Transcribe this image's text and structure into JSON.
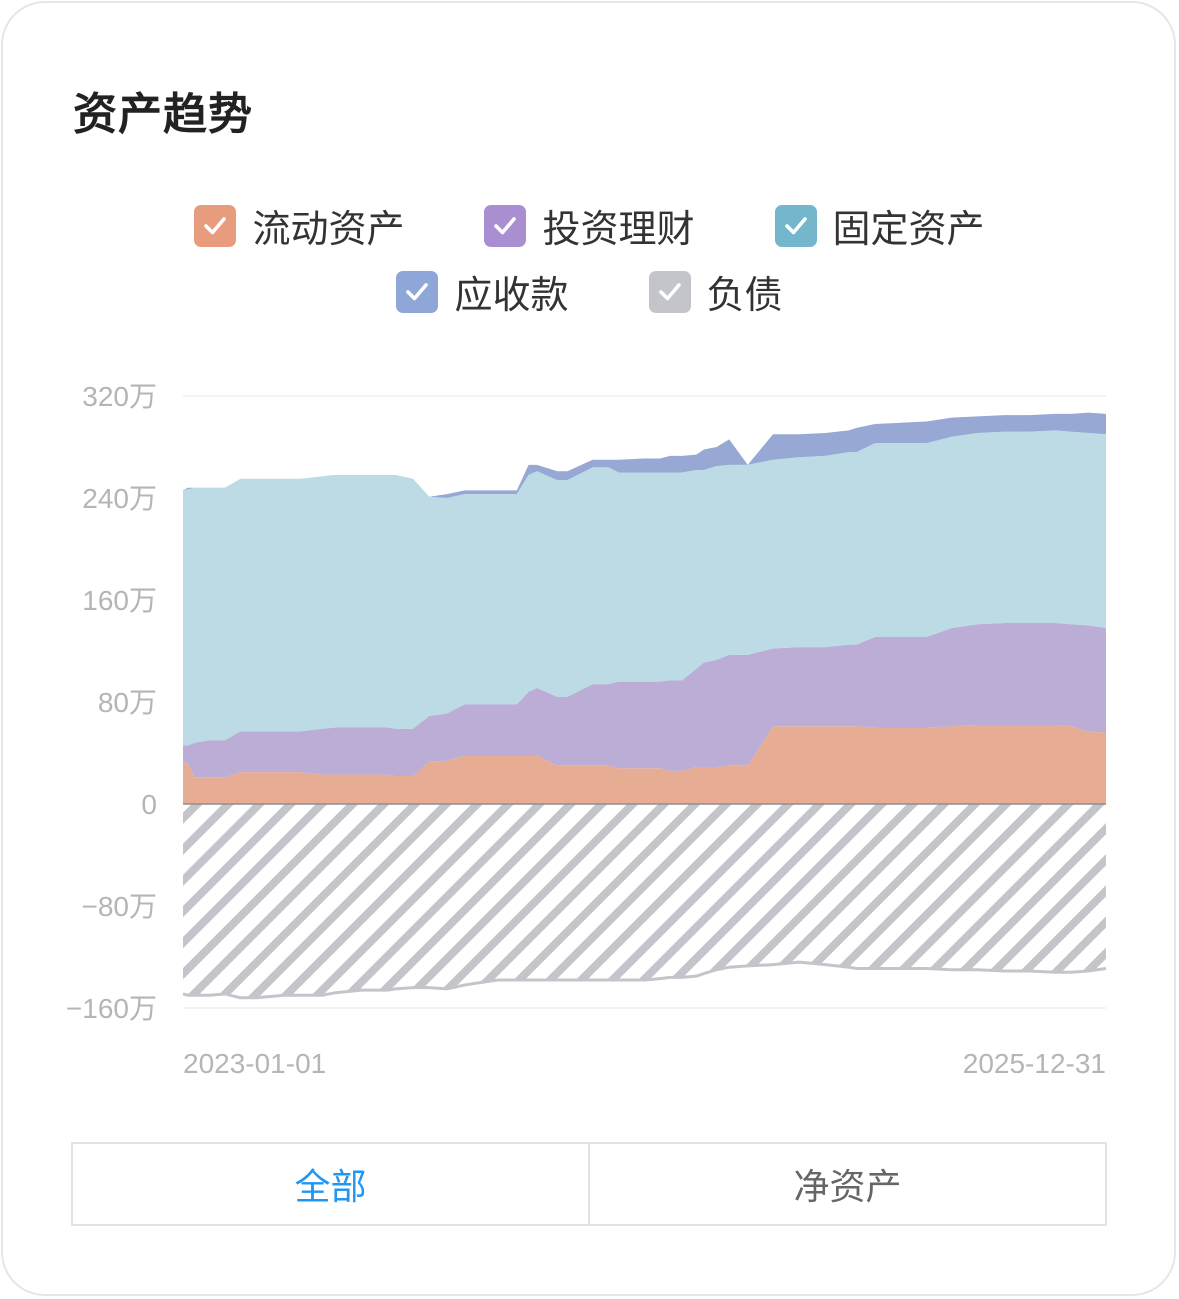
{
  "card": {
    "title": "资产趋势"
  },
  "legend": [
    {
      "label": "流动资产",
      "color": "#e79c7e",
      "icon": "check-icon"
    },
    {
      "label": "投资理财",
      "color": "#a98fd2",
      "icon": "check-icon"
    },
    {
      "label": "固定资产",
      "color": "#74b7cc",
      "icon": "check-icon"
    },
    {
      "label": "应收款",
      "color": "#8fa7d8",
      "icon": "check-icon"
    },
    {
      "label": "负债",
      "color": "#c4c4cb",
      "icon": "check-icon"
    }
  ],
  "tabs": [
    {
      "label": "全部",
      "active": true
    },
    {
      "label": "净资产",
      "active": false
    }
  ],
  "chart_data": {
    "type": "area",
    "stacked": true,
    "ylim": [
      -1600000,
      3200000
    ],
    "y_ticks": [
      {
        "value": 3200000,
        "label": "320万"
      },
      {
        "value": 2400000,
        "label": "240万"
      },
      {
        "value": 1600000,
        "label": "160万"
      },
      {
        "value": 800000,
        "label": "80万"
      },
      {
        "value": 0,
        "label": "0"
      },
      {
        "value": -800000,
        "label": "−80万"
      },
      {
        "value": -1600000,
        "label": "−160万"
      }
    ],
    "x_tick_labels": [
      "2023-01-01",
      "2025-12-31"
    ],
    "x": [
      "2023-01-01",
      "2023-01-07",
      "2023-01-15",
      "2023-02-01",
      "2023-02-20",
      "2023-03-10",
      "2023-03-29",
      "2023-05-01",
      "2023-05-20",
      "2023-06-15",
      "2023-07-01",
      "2023-08-01",
      "2023-08-20",
      "2023-09-01",
      "2023-09-10",
      "2023-10-01",
      "2023-10-20",
      "2023-11-10",
      "2023-12-01",
      "2023-12-20",
      "2024-01-10",
      "2024-02-01",
      "2024-02-15",
      "2024-02-25",
      "2024-03-20",
      "2024-04-01",
      "2024-05-01",
      "2024-05-20",
      "2024-06-01",
      "2024-07-01",
      "2024-07-20",
      "2024-08-01",
      "2024-08-15",
      "2024-09-01",
      "2024-09-10",
      "2024-09-25",
      "2024-10-10",
      "2024-11-01",
      "2024-12-01",
      "2025-01-01",
      "2025-02-01",
      "2025-03-01",
      "2025-03-10",
      "2025-04-01",
      "2025-05-01",
      "2025-06-01",
      "2025-07-01",
      "2025-08-01",
      "2025-09-01",
      "2025-10-01",
      "2025-11-01",
      "2025-11-20",
      "2025-12-10",
      "2025-12-31"
    ],
    "series": [
      {
        "name": "流动资产",
        "color": "#e6ad94",
        "values": [
          330000,
          320000,
          210000,
          210000,
          210000,
          250000,
          250000,
          250000,
          250000,
          230000,
          230000,
          230000,
          230000,
          230000,
          220000,
          220000,
          330000,
          340000,
          380000,
          380000,
          380000,
          380000,
          380000,
          380000,
          300000,
          300000,
          300000,
          300000,
          280000,
          280000,
          280000,
          260000,
          260000,
          290000,
          290000,
          290000,
          300000,
          300000,
          610000,
          610000,
          610000,
          610000,
          610000,
          600000,
          600000,
          600000,
          610000,
          620000,
          620000,
          620000,
          620000,
          610000,
          570000,
          560000
        ]
      },
      {
        "name": "投资理财",
        "color": "#bbadd6",
        "values": [
          130000,
          140000,
          270000,
          290000,
          290000,
          320000,
          320000,
          320000,
          320000,
          360000,
          370000,
          370000,
          370000,
          370000,
          370000,
          370000,
          360000,
          370000,
          400000,
          400000,
          400000,
          400000,
          500000,
          530000,
          540000,
          540000,
          640000,
          640000,
          680000,
          680000,
          680000,
          710000,
          710000,
          770000,
          820000,
          840000,
          870000,
          870000,
          610000,
          620000,
          620000,
          640000,
          640000,
          710000,
          710000,
          710000,
          770000,
          790000,
          800000,
          800000,
          800000,
          800000,
          830000,
          820000
        ]
      },
      {
        "name": "固定资产",
        "color": "#bddbe4",
        "values": [
          2000000,
          2010000,
          2000000,
          1980000,
          1980000,
          1980000,
          1980000,
          1980000,
          1980000,
          1980000,
          1980000,
          1980000,
          1980000,
          1980000,
          1990000,
          1960000,
          1720000,
          1690000,
          1650000,
          1650000,
          1650000,
          1650000,
          1700000,
          1700000,
          1700000,
          1700000,
          1700000,
          1700000,
          1640000,
          1640000,
          1640000,
          1630000,
          1630000,
          1560000,
          1510000,
          1520000,
          1490000,
          1490000,
          1480000,
          1490000,
          1500000,
          1510000,
          1510000,
          1520000,
          1520000,
          1520000,
          1500000,
          1500000,
          1500000,
          1500000,
          1510000,
          1510000,
          1510000,
          1520000
        ]
      },
      {
        "name": "应收款",
        "color": "#96a8d3",
        "values": [
          0,
          0,
          0,
          0,
          0,
          0,
          0,
          0,
          0,
          0,
          0,
          0,
          0,
          0,
          0,
          0,
          0,
          0,
          0,
          0,
          0,
          0,
          0,
          0,
          0,
          0,
          0,
          0,
          0,
          0,
          0,
          0,
          0,
          0,
          0,
          0,
          0,
          0,
          0,
          0,
          0,
          0,
          0,
          0,
          0,
          0,
          0,
          0,
          0,
          0,
          0,
          0,
          0,
          0
        ]
      },
      {
        "name": "负债",
        "color": "#c4c4cb",
        "values": [
          -1490000,
          -1500000,
          -1500000,
          -1500000,
          -1490000,
          -1520000,
          -1520000,
          -1500000,
          -1500000,
          -1500000,
          -1480000,
          -1460000,
          -1460000,
          -1460000,
          -1450000,
          -1440000,
          -1440000,
          -1450000,
          -1420000,
          -1400000,
          -1380000,
          -1380000,
          -1380000,
          -1380000,
          -1380000,
          -1380000,
          -1380000,
          -1380000,
          -1380000,
          -1380000,
          -1370000,
          -1360000,
          -1360000,
          -1350000,
          -1330000,
          -1300000,
          -1280000,
          -1270000,
          -1260000,
          -1240000,
          -1260000,
          -1280000,
          -1290000,
          -1290000,
          -1290000,
          -1290000,
          -1300000,
          -1300000,
          -1310000,
          -1310000,
          -1320000,
          -1320000,
          -1310000,
          -1290000
        ]
      }
    ],
    "receivable_top": [
      2460000,
      2480000,
      2480000,
      2480000,
      2480000,
      2540000,
      2550000,
      2550000,
      2550000,
      2570000,
      2580000,
      2580000,
      2580000,
      2580000,
      2580000,
      2550000,
      2410000,
      2430000,
      2460000,
      2460000,
      2460000,
      2460000,
      2660000,
      2660000,
      2610000,
      2610000,
      2700000,
      2700000,
      2700000,
      2710000,
      2710000,
      2730000,
      2730000,
      2740000,
      2780000,
      2800000,
      2860000,
      2620000,
      2900000,
      2900000,
      2910000,
      2930000,
      2950000,
      2980000,
      2990000,
      3000000,
      3030000,
      3040000,
      3050000,
      3050000,
      3060000,
      3060000,
      3070000,
      3060000
    ]
  }
}
